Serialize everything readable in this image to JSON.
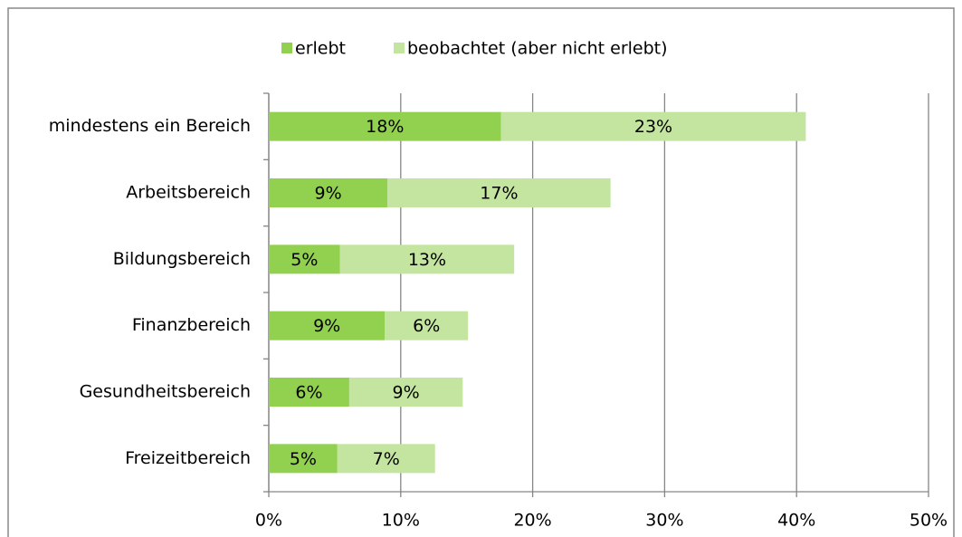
{
  "chart_data": {
    "type": "stacked-bar",
    "orientation": "horizontal",
    "categories": [
      "mindestens ein Bereich",
      "Arbeitsbereich",
      "Bildungsbereich",
      "Finanzbereich",
      "Gesundheitsbereich",
      "Freizeitbereich"
    ],
    "series": [
      {
        "name": "erlebt",
        "color": "#92d050",
        "values": [
          17.6,
          9.0,
          5.4,
          8.8,
          6.1,
          5.2
        ],
        "value_labels": [
          "18%",
          "9%",
          "5%",
          "9%",
          "6%",
          "5%"
        ]
      },
      {
        "name": "beobachtet (aber nicht erlebt)",
        "color": "#c4e59f",
        "values": [
          23.1,
          16.9,
          13.2,
          6.3,
          8.6,
          7.4
        ],
        "value_labels": [
          "23%",
          "17%",
          "13%",
          "6%",
          "9%",
          "7%"
        ]
      }
    ],
    "xlim": [
      0,
      50
    ],
    "xticks": [
      {
        "value": 0,
        "label": "0%"
      },
      {
        "value": 10,
        "label": "10%"
      },
      {
        "value": 20,
        "label": "20%"
      },
      {
        "value": 30,
        "label": "30%"
      },
      {
        "value": 40,
        "label": "40%"
      },
      {
        "value": 50,
        "label": "50%"
      }
    ],
    "grid": true,
    "legend": "top"
  }
}
